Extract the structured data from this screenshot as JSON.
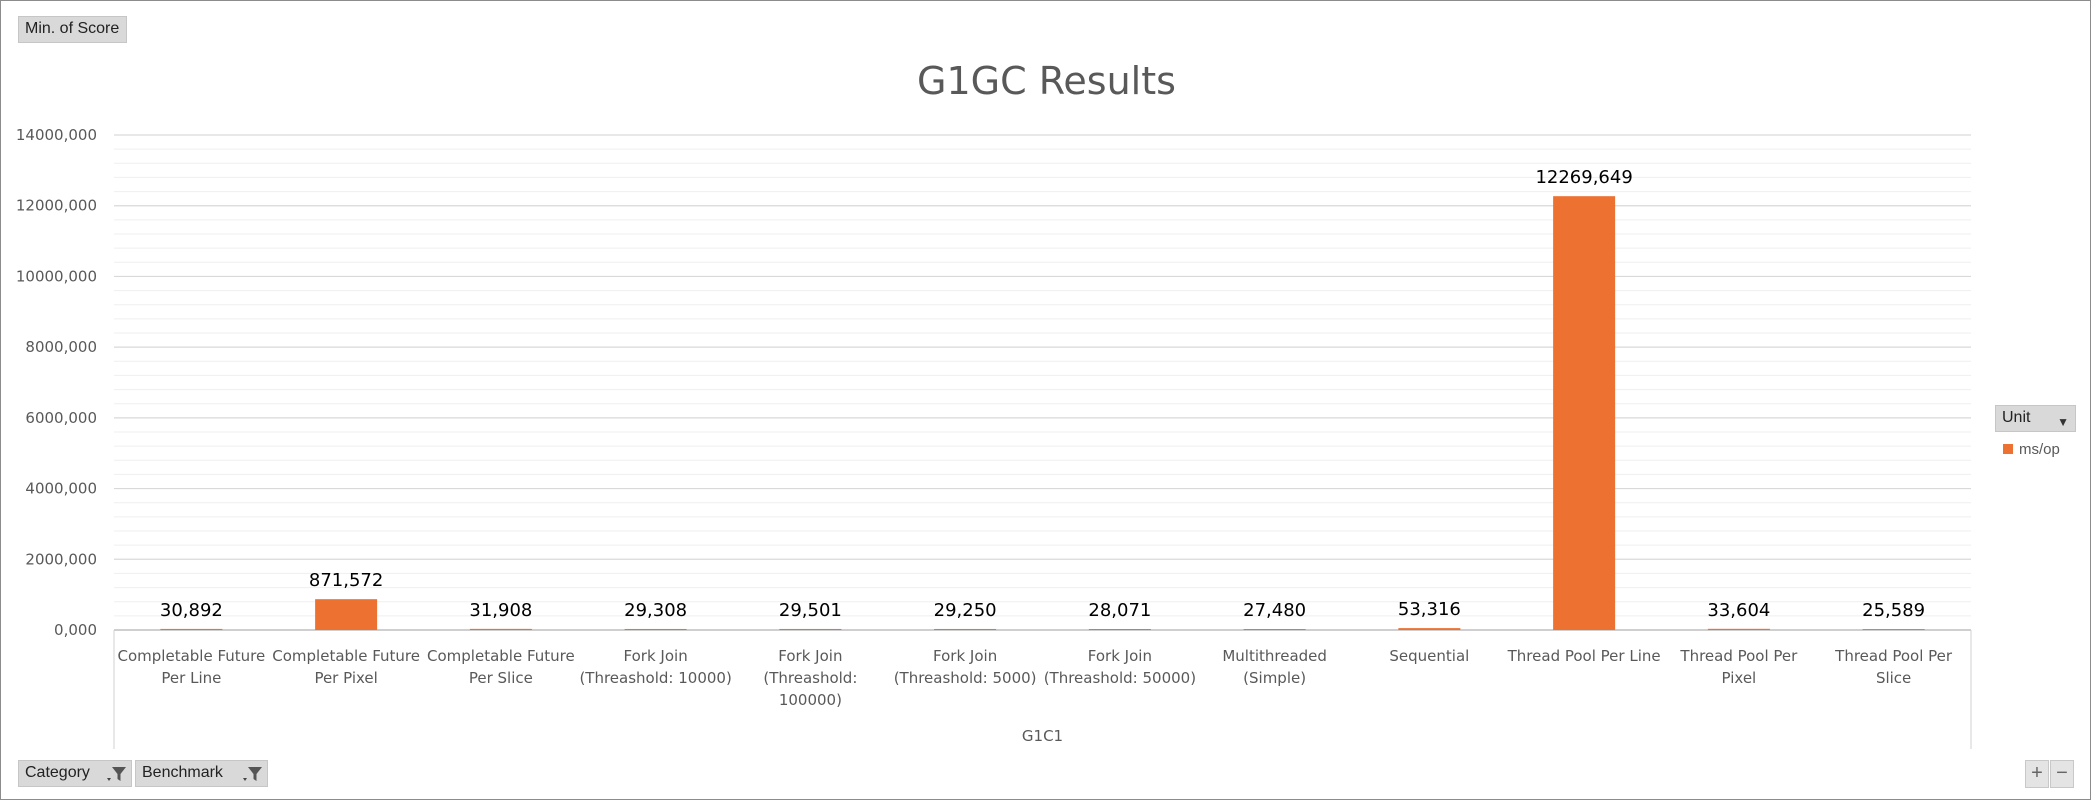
{
  "pivot": {
    "value_field": "Min. of Score",
    "axis_fields": [
      {
        "label": "Category",
        "has_filter": true
      },
      {
        "label": "Benchmark",
        "has_filter": true
      }
    ],
    "legend_field": "Unit"
  },
  "zoom": {
    "plus": "+",
    "minus": "−"
  },
  "colors": {
    "bar": "#ed7131",
    "grid_major": "#d9d9d9",
    "grid_minor": "#efefef",
    "axis_text": "#595959"
  },
  "chart_data": {
    "type": "bar",
    "title": "G1GC Results",
    "group_label": "G1C1",
    "categories": [
      [
        "Completable Future",
        "Per Line"
      ],
      [
        "Completable Future",
        "Per Pixel"
      ],
      [
        "Completable Future",
        "Per Slice"
      ],
      [
        "Fork Join",
        "(Threashold: 10000)"
      ],
      [
        "Fork Join",
        "(Threashold:",
        "100000)"
      ],
      [
        "Fork Join",
        "(Threashold: 5000)"
      ],
      [
        "Fork Join",
        "(Threashold: 50000)"
      ],
      [
        "Multithreaded",
        "(Simple)"
      ],
      [
        "Sequential"
      ],
      [
        "Thread Pool Per Line"
      ],
      [
        "Thread Pool Per",
        "Pixel"
      ],
      [
        "Thread Pool Per",
        "Slice"
      ]
    ],
    "series": [
      {
        "name": "ms/op",
        "values": [
          30892,
          871572,
          31908,
          29308,
          29501,
          29250,
          28071,
          27480,
          53316,
          12269649,
          33604,
          25589
        ]
      }
    ],
    "data_labels": [
      "30,892",
      "871,572",
      "31,908",
      "29,308",
      "29,501",
      "29,250",
      "28,071",
      "27,480",
      "53,316",
      "12269,649",
      "33,604",
      "25,589"
    ],
    "ylim": [
      0,
      14000000
    ],
    "y_ticks": [
      0,
      2000000,
      4000000,
      6000000,
      8000000,
      10000000,
      12000000,
      14000000
    ],
    "y_tick_labels": [
      "0,000",
      "2000,000",
      "4000,000",
      "6000,000",
      "8000,000",
      "10000,000",
      "12000,000",
      "14000,000"
    ],
    "minor_gridlines": true,
    "legend_position": "right"
  }
}
